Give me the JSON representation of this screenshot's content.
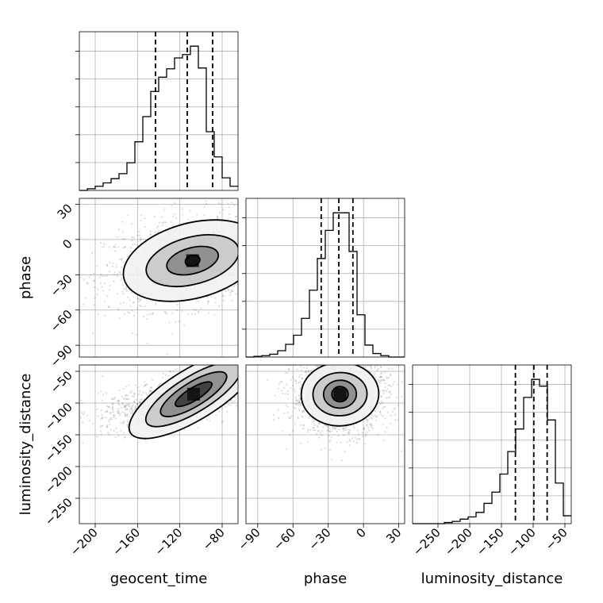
{
  "chart_data": {
    "type": "corner",
    "parameters": [
      "geocent_time",
      "phase",
      "luminosity_distance"
    ],
    "ranges": {
      "geocent_time": [
        -215,
        -65
      ],
      "phase": [
        -100,
        35
      ],
      "luminosity_distance": [
        -290,
        -40
      ]
    },
    "ticks": {
      "geocent_time": [
        -200,
        -160,
        -120,
        -80
      ],
      "phase": [
        -90,
        -60,
        -30,
        0,
        30
      ],
      "luminosity_distance": [
        -250,
        -200,
        -150,
        -100,
        -50
      ]
    },
    "tick_labels": {
      "geocent_time": [
        "−200",
        "−160",
        "−120",
        "−80"
      ],
      "phase": [
        "−90",
        "−60",
        "−30",
        "0",
        "30"
      ],
      "luminosity_distance": [
        "−250",
        "−200",
        "−150",
        "−100",
        "−50"
      ]
    },
    "marginals": [
      {
        "parameter": "geocent_time",
        "bin_edges": [
          -215,
          -207.5,
          -200,
          -192.5,
          -185,
          -177.5,
          -170,
          -162.5,
          -155,
          -147.5,
          -140,
          -132.5,
          -125,
          -117.5,
          -110,
          -102.5,
          -95,
          -87.5,
          -80,
          -72.5,
          -65
        ],
        "counts": [
          0,
          2,
          5,
          9,
          14,
          20,
          33,
          58,
          88,
          118,
          135,
          145,
          158,
          162,
          172,
          146,
          70,
          40,
          15,
          5
        ],
        "quantiles": [
          -143,
          -113,
          -89
        ]
      },
      {
        "parameter": "phase",
        "bin_edges": [
          -100,
          -93.25,
          -86.5,
          -79.75,
          -73,
          -66.25,
          -59.5,
          -52.75,
          -46,
          -39.25,
          -32.5,
          -25.75,
          -19,
          -12.25,
          -5.5,
          1.25,
          8,
          14.75,
          21.5,
          28.25,
          35
        ],
        "counts": [
          0,
          1,
          2,
          4,
          9,
          18,
          31,
          55,
          95,
          140,
          180,
          205,
          205,
          150,
          60,
          17,
          5,
          2,
          0,
          0
        ],
        "quantiles": [
          -36,
          -21,
          -9
        ]
      },
      {
        "parameter": "luminosity_distance",
        "bin_edges": [
          -290,
          -277.5,
          -265,
          -252.5,
          -240,
          -227.5,
          -215,
          -202.5,
          -190,
          -177.5,
          -165,
          -152.5,
          -140,
          -127.5,
          -115,
          -102.5,
          -90,
          -77.5,
          -65,
          -52.5,
          -40
        ],
        "counts": [
          0,
          0,
          0,
          0,
          1,
          2,
          4,
          6,
          10,
          18,
          28,
          44,
          64,
          84,
          112,
          128,
          122,
          92,
          36,
          7
        ],
        "quantiles": [
          -128,
          -99,
          -78
        ]
      }
    ],
    "joint": [
      {
        "x": "geocent_time",
        "y": "phase",
        "center": [
          -108,
          -18
        ],
        "contour_levels": [
          {
            "rx": 7,
            "ry": 4.5
          },
          {
            "rx": 25,
            "ry": 11
          },
          {
            "rx": 45,
            "ry": 20
          },
          {
            "rx": 67,
            "ry": 32
          }
        ],
        "correlation": 0.3
      },
      {
        "x": "geocent_time",
        "y": "luminosity_distance",
        "center": [
          -107,
          -86
        ],
        "contour_levels": [
          {
            "rx": 20,
            "ry": 10
          },
          {
            "rx": 36,
            "ry": 19
          },
          {
            "rx": 52,
            "ry": 28
          },
          {
            "rx": 70,
            "ry": 40
          }
        ],
        "correlation": 0.7
      },
      {
        "x": "phase",
        "y": "luminosity_distance",
        "center": [
          -20,
          -86
        ],
        "contour_levels": [
          {
            "rx": 7,
            "ry": 12
          },
          {
            "rx": 14,
            "ry": 22
          },
          {
            "rx": 23,
            "ry": 34
          },
          {
            "rx": 33,
            "ry": 50
          }
        ],
        "correlation": 0.05
      }
    ],
    "grid": true
  }
}
